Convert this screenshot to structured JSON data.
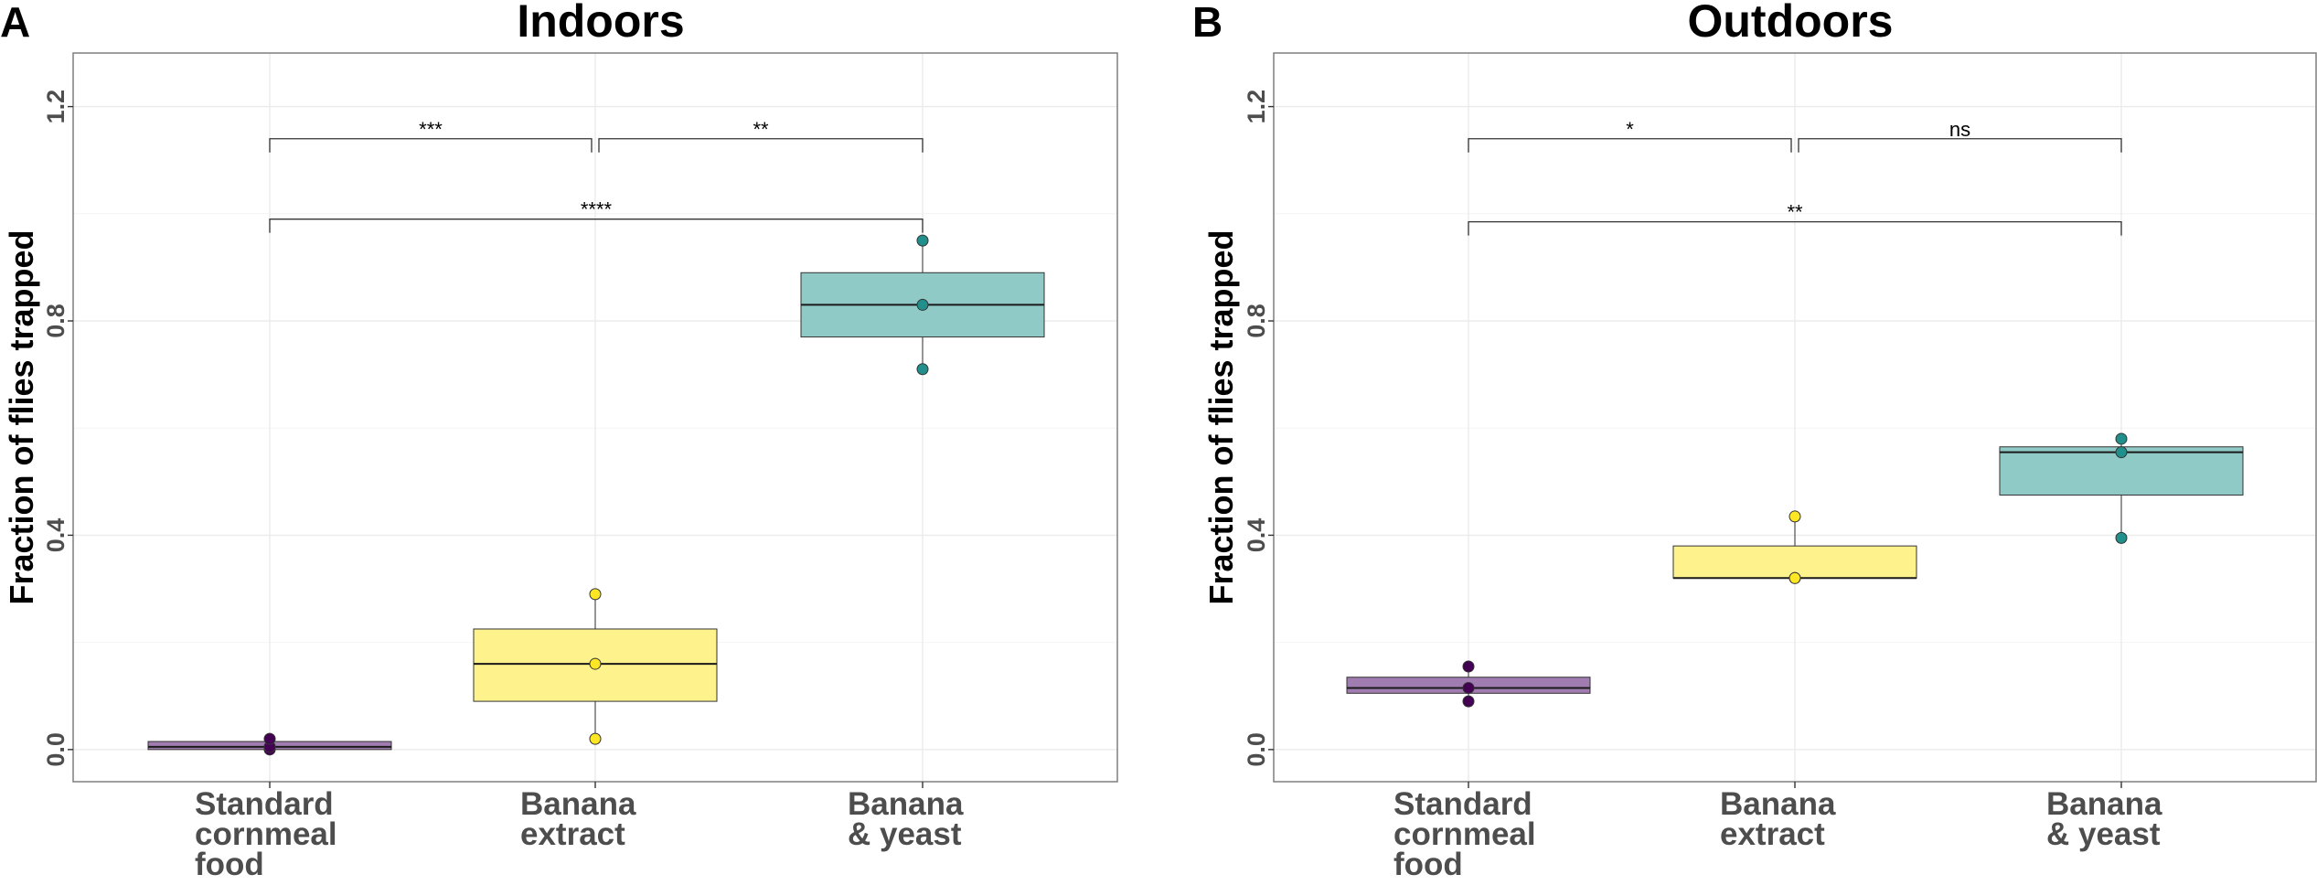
{
  "chart_data": [
    {
      "type": "box",
      "panel_letter": "A",
      "title": "Indoors",
      "ylabel": "Fraction of flies trapped",
      "xlabel": "",
      "ylim": [
        -0.06,
        1.3
      ],
      "yticks": [
        0.0,
        0.4,
        0.8,
        1.2
      ],
      "ytick_labels": [
        "0.0",
        "0.4",
        "0.8",
        "1.2"
      ],
      "grid": true,
      "categories": [
        {
          "lines": [
            "Standard",
            "cornmeal",
            "food"
          ]
        },
        {
          "lines": [
            "Banana",
            "extract"
          ]
        },
        {
          "lines": [
            "Banana",
            "& yeast"
          ]
        }
      ],
      "boxes": [
        {
          "category": "Standard cornmeal food",
          "q1": 0.0,
          "median": 0.005,
          "q3": 0.015,
          "whisker_low": 0.0,
          "whisker_high": 0.02,
          "points": [
            0.0,
            0.005,
            0.02
          ],
          "fill": "#a07cb0",
          "point_color": "#440154"
        },
        {
          "category": "Banana extract",
          "q1": 0.09,
          "median": 0.16,
          "q3": 0.225,
          "whisker_low": 0.02,
          "whisker_high": 0.29,
          "points": [
            0.02,
            0.16,
            0.29
          ],
          "fill": "#fdf28c",
          "point_color": "#fde725"
        },
        {
          "category": "Banana & yeast",
          "q1": 0.77,
          "median": 0.83,
          "q3": 0.89,
          "whisker_low": 0.71,
          "whisker_high": 0.95,
          "points": [
            0.71,
            0.83,
            0.95
          ],
          "fill": "#90cac6",
          "point_color": "#21908d"
        }
      ],
      "comparisons": [
        {
          "from": 0,
          "to": 1,
          "y": 1.14,
          "label": "***"
        },
        {
          "from": 1,
          "to": 2,
          "y": 1.14,
          "label": "**"
        },
        {
          "from": 0,
          "to": 2,
          "y": 0.99,
          "label": "****"
        }
      ]
    },
    {
      "type": "box",
      "panel_letter": "B",
      "title": "Outdoors",
      "ylabel": "Fraction of flies trapped",
      "xlabel": "",
      "ylim": [
        -0.06,
        1.3
      ],
      "yticks": [
        0.0,
        0.4,
        0.8,
        1.2
      ],
      "ytick_labels": [
        "0.0",
        "0.4",
        "0.8",
        "1.2"
      ],
      "grid": true,
      "categories": [
        {
          "lines": [
            "Standard",
            "cornmeal",
            "food"
          ]
        },
        {
          "lines": [
            "Banana",
            "extract"
          ]
        },
        {
          "lines": [
            "Banana",
            "& yeast"
          ]
        }
      ],
      "boxes": [
        {
          "category": "Standard cornmeal food",
          "q1": 0.105,
          "median": 0.115,
          "q3": 0.135,
          "whisker_low": 0.09,
          "whisker_high": 0.155,
          "points": [
            0.09,
            0.115,
            0.155
          ],
          "fill": "#a07cb0",
          "point_color": "#440154"
        },
        {
          "category": "Banana extract",
          "q1": 0.32,
          "median": 0.32,
          "q3": 0.38,
          "whisker_low": 0.32,
          "whisker_high": 0.435,
          "points": [
            0.32,
            0.32,
            0.435
          ],
          "fill": "#fdf28c",
          "point_color": "#fde725"
        },
        {
          "category": "Banana & yeast",
          "q1": 0.475,
          "median": 0.555,
          "q3": 0.565,
          "whisker_low": 0.395,
          "whisker_high": 0.58,
          "points": [
            0.395,
            0.555,
            0.58
          ],
          "fill": "#90cac6",
          "point_color": "#21908d"
        }
      ],
      "comparisons": [
        {
          "from": 0,
          "to": 1,
          "y": 1.14,
          "label": "*"
        },
        {
          "from": 1,
          "to": 2,
          "y": 1.14,
          "label": "ns"
        },
        {
          "from": 0,
          "to": 2,
          "y": 0.985,
          "label": "**"
        }
      ]
    }
  ]
}
